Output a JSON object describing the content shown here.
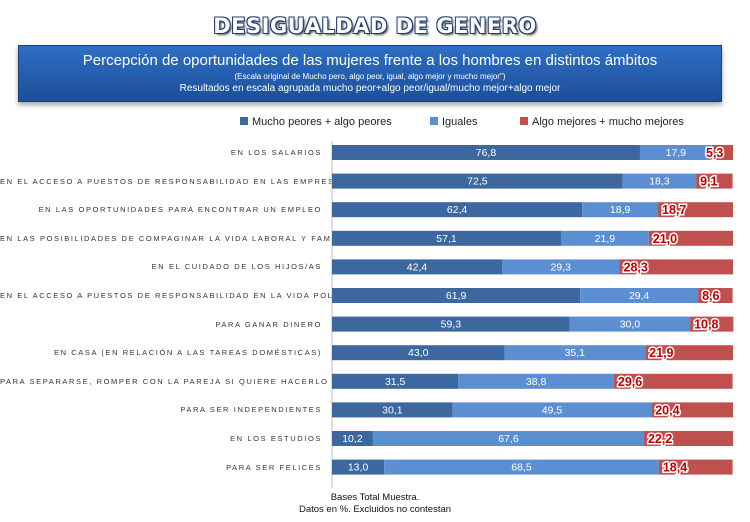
{
  "page": {
    "title": "DESIGUALDAD DE GENERO",
    "subtitle": "Percepción de oportunidades de las mujeres frente a los hombres en distintos ámbitos",
    "note_scale": "(Escala original de Mucho pero, algo peor, igual, algo mejor y mucho mejor\")",
    "note_results": "Resultados en escala agrupada mucho peor+algo peor/igual/mucho mejor+algo mejor",
    "footer_line1": "Bases Total Muestra.",
    "footer_line2": "Datos en %. Excluidos no contestan"
  },
  "chart_data": {
    "type": "bar",
    "orientation": "horizontal",
    "stacked": true,
    "xlim": [
      0,
      100
    ],
    "grid": false,
    "legend_position": "top",
    "categories": [
      "EN LOS SALARIOS",
      "EN EL ACCESO A PUESTOS DE RESPONSABILIDAD EN LAS EMPRESAS",
      "EN LAS OPORTUNIDADES PARA ENCONTRAR UN EMPLEO",
      "EN LAS POSIBILIDADES DE COMPAGINAR LA VIDA LABORAL Y FAMILIAR",
      "EN EL CUIDADO DE LOS HIJOS/AS",
      "EN EL ACCESO A PUESTOS DE RESPONSABILIDAD EN LA VIDA POLÍTICA",
      "PARA GANAR DINERO",
      "EN CASA (EN RELACIÓN A LAS TAREAS DOMÉSTICAS)",
      "PARA SEPARARSE, ROMPER CON LA PAREJA SI QUIERE HACERLO",
      "PARA SER INDEPENDIENTES",
      "EN LOS ESTUDIOS",
      "PARA SER FELICES"
    ],
    "series": [
      {
        "name": "Mucho peores + algo peores",
        "color": "#3c679f",
        "values": [
          76.8,
          72.5,
          62.4,
          57.1,
          42.4,
          61.9,
          59.3,
          43.0,
          31.5,
          30.1,
          10.2,
          13.0
        ],
        "labels": [
          "76,8",
          "72,5",
          "62,4",
          "57,1",
          "42,4",
          "61,9",
          "59,3",
          "43,0",
          "31,5",
          "30,1",
          "10,2",
          "13,0"
        ]
      },
      {
        "name": "Iguales",
        "color": "#5b8fd2",
        "values": [
          17.9,
          18.3,
          18.9,
          21.9,
          29.3,
          29.4,
          30.0,
          35.1,
          38.8,
          49.5,
          67.6,
          68.5
        ],
        "labels": [
          "17,9",
          "18,3",
          "18,9",
          "21,9",
          "29,3",
          "29,4",
          "30,0",
          "35,1",
          "38,8",
          "49,5",
          "67,6",
          "68,5"
        ]
      },
      {
        "name": "Algo mejores + mucho mejores",
        "color": "#c0504d",
        "values": [
          5.3,
          9.1,
          18.7,
          21.0,
          28.3,
          8.6,
          10.8,
          21.9,
          29.6,
          20.4,
          22.2,
          18.4
        ],
        "labels": [
          "5,3",
          "9,1",
          "18,7",
          "21,0",
          "28,3",
          "8,6",
          "10,8",
          "21,9",
          "29,6",
          "20,4",
          "22,2",
          "18,4"
        ]
      }
    ]
  }
}
